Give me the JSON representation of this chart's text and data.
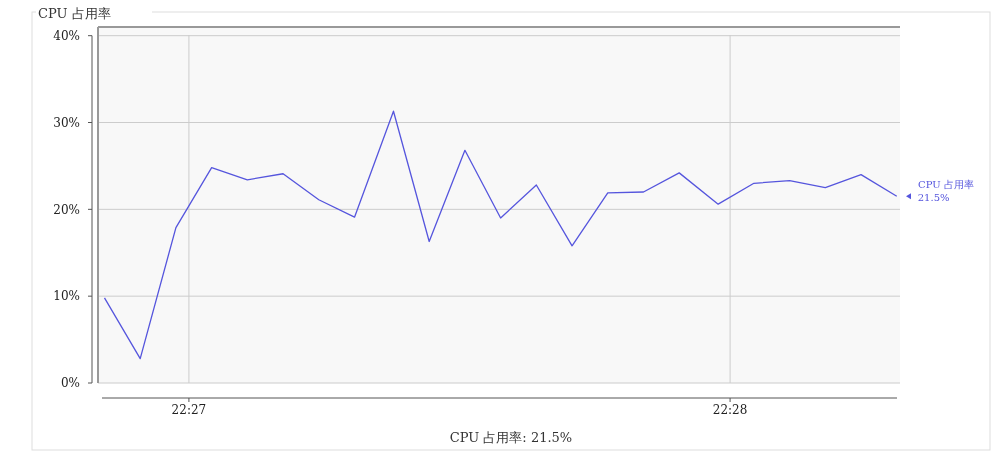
{
  "chart_data": {
    "type": "line",
    "title": "CPU 占用率",
    "x": [
      22.4474,
      22.4485,
      22.4496,
      22.4507,
      22.4518,
      22.4529,
      22.454,
      22.4551,
      22.4563,
      22.4574,
      22.4585,
      22.4596,
      22.4607,
      22.4618,
      22.4629,
      22.464,
      22.4651,
      22.4663,
      22.4674,
      22.4685,
      22.4696,
      22.4707,
      22.4718
    ],
    "series": [
      {
        "name": "CPU 占用率",
        "color": "#5555dd",
        "values": [
          9.8,
          2.8,
          17.9,
          24.8,
          23.4,
          24.1,
          21.1,
          19.1,
          31.3,
          16.3,
          26.8,
          19.0,
          22.8,
          15.8,
          21.9,
          22.0,
          24.2,
          20.6,
          23.0,
          23.3,
          22.5,
          24.0,
          21.5
        ]
      }
    ],
    "xlim": [
      22.4472,
      22.4719
    ],
    "xticks": [
      {
        "value": 22.45,
        "label": "22:27"
      },
      {
        "value": 22.466667,
        "label": "22:28"
      }
    ],
    "ylim": [
      0,
      41
    ],
    "yticks": [
      {
        "value": 0,
        "label": "0%"
      },
      {
        "value": 10,
        "label": "10%"
      },
      {
        "value": 20,
        "label": "20%"
      },
      {
        "value": 30,
        "label": "30%"
      },
      {
        "value": 40,
        "label": "40%"
      }
    ],
    "grid": true,
    "annotations": [
      {
        "text": "21.5%",
        "x": 22.4718,
        "y": 21.5
      },
      "CPU 占用率: 21.5%"
    ]
  }
}
